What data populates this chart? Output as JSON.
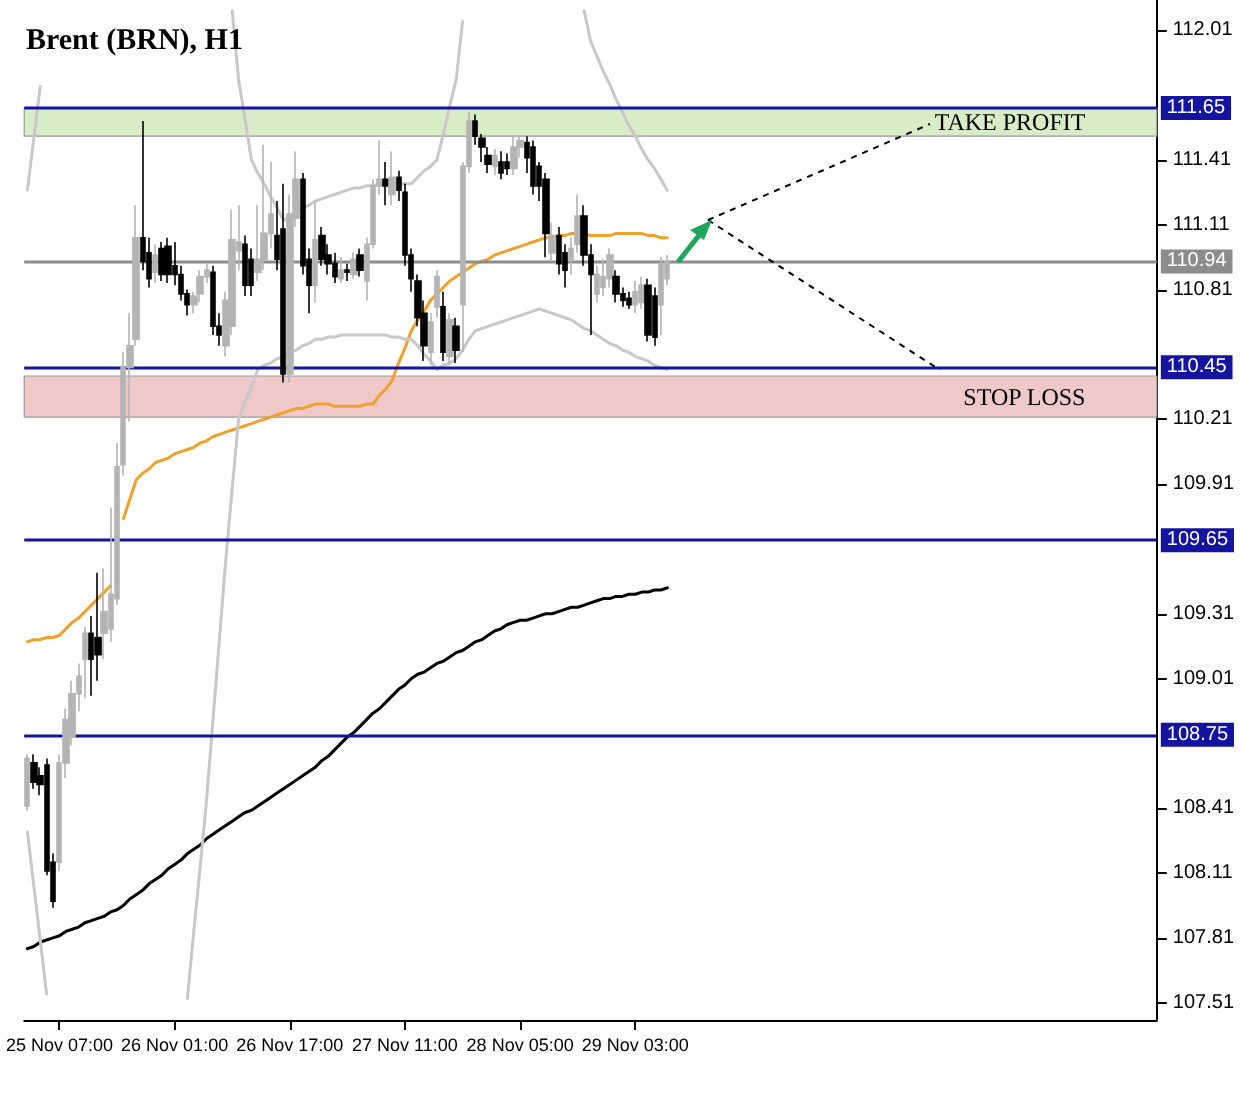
{
  "chart_data": {
    "type": "candlestick",
    "title": "Brent (BRN), H1",
    "categories": [
      null,
      null,
      null,
      null,
      null,
      "25 Nov 07:00",
      null,
      null,
      null,
      null,
      null,
      null,
      null,
      null,
      null,
      null,
      null,
      null,
      null,
      null,
      null,
      null,
      null,
      "26 Nov 01:00",
      null,
      null,
      null,
      null,
      null,
      null,
      null,
      null,
      null,
      null,
      null,
      null,
      null,
      null,
      null,
      null,
      null,
      "26 Nov 17:00",
      null,
      null,
      null,
      null,
      null,
      null,
      null,
      null,
      null,
      null,
      null,
      null,
      null,
      null,
      null,
      null,
      null,
      "27 Nov 11:00",
      null,
      null,
      null,
      null,
      null,
      null,
      null,
      null,
      null,
      null,
      null,
      null,
      null,
      null,
      null,
      null,
      null,
      "28 Nov 05:00",
      null,
      null,
      null,
      null,
      null,
      null,
      null,
      null,
      null,
      null,
      null,
      null,
      null,
      null,
      null,
      null,
      null,
      "29 Nov 03:00",
      null,
      null,
      null,
      null,
      null,
      null,
      null,
      null,
      null,
      null,
      null,
      null,
      null,
      null,
      null,
      null,
      null,
      null,
      null,
      null,
      null,
      null,
      null,
      null,
      null,
      null,
      null,
      null,
      null,
      null,
      null,
      null,
      null,
      null,
      null,
      null,
      null,
      null,
      null,
      null,
      null,
      null,
      null,
      null,
      null,
      null,
      null,
      null,
      null,
      null,
      null,
      null,
      null,
      null,
      null,
      null,
      null,
      null,
      null,
      null,
      null,
      null,
      null,
      null,
      null,
      null,
      null,
      null,
      null,
      null,
      null,
      null,
      null,
      null,
      null,
      null,
      null,
      null,
      null,
      null,
      null
    ],
    "ohlc": [
      [
        108.42,
        108.66,
        108.4,
        108.64
      ],
      [
        108.62,
        108.66,
        108.5,
        108.53
      ],
      [
        108.56,
        108.6,
        108.47,
        108.52
      ],
      [
        108.61,
        108.64,
        108.1,
        108.12
      ],
      [
        108.16,
        108.2,
        107.95,
        107.98
      ],
      [
        108.16,
        108.66,
        108.12,
        108.62
      ],
      [
        108.62,
        108.87,
        108.55,
        108.82
      ],
      [
        108.74,
        109.0,
        108.7,
        108.94
      ],
      [
        108.94,
        109.08,
        108.86,
        109.02
      ],
      [
        109.1,
        109.25,
        108.92,
        109.22
      ],
      [
        109.22,
        109.3,
        108.93,
        109.1
      ],
      [
        109.2,
        109.5,
        109.0,
        109.12
      ],
      [
        109.22,
        109.52,
        109.1,
        109.32
      ],
      [
        109.24,
        109.8,
        109.18,
        109.4
      ],
      [
        109.38,
        110.1,
        109.35,
        109.99
      ],
      [
        110.0,
        110.52,
        109.95,
        110.45
      ],
      [
        110.45,
        110.7,
        110.2,
        110.55
      ],
      [
        110.58,
        111.2,
        110.55,
        111.05
      ],
      [
        111.05,
        111.59,
        110.9,
        110.94
      ],
      [
        110.98,
        111.05,
        110.82,
        110.86
      ],
      [
        110.89,
        111.02,
        110.84,
        110.97
      ],
      [
        111.0,
        111.03,
        110.85,
        110.88
      ],
      [
        111.01,
        111.05,
        110.84,
        110.88
      ],
      [
        110.92,
        111.03,
        110.83,
        110.88
      ],
      [
        110.88,
        110.92,
        110.76,
        110.79
      ],
      [
        110.79,
        110.81,
        110.69,
        110.74
      ],
      [
        110.74,
        110.8,
        110.7,
        110.78
      ],
      [
        110.79,
        110.9,
        110.75,
        110.87
      ],
      [
        110.87,
        110.93,
        110.84,
        110.9
      ],
      [
        110.89,
        110.92,
        110.6,
        110.64
      ],
      [
        110.64,
        110.7,
        110.55,
        110.6
      ],
      [
        110.55,
        110.8,
        110.5,
        110.76
      ],
      [
        110.64,
        111.18,
        110.6,
        111.04
      ],
      [
        110.99,
        111.2,
        110.9,
        111.03
      ],
      [
        111.02,
        111.06,
        110.78,
        110.83
      ],
      [
        110.95,
        111.0,
        110.78,
        110.83
      ],
      [
        110.89,
        111.2,
        110.85,
        110.95
      ],
      [
        110.95,
        111.48,
        110.9,
        111.07
      ],
      [
        111.07,
        111.4,
        111.0,
        111.16
      ],
      [
        111.06,
        111.22,
        110.9,
        110.95
      ],
      [
        111.09,
        111.3,
        110.38,
        110.42
      ],
      [
        110.42,
        111.25,
        110.38,
        111.16
      ],
      [
        111.14,
        111.45,
        111.1,
        111.32
      ],
      [
        111.32,
        111.35,
        110.88,
        110.92
      ],
      [
        110.95,
        111.0,
        110.7,
        110.83
      ],
      [
        110.83,
        111.22,
        110.75,
        111.04
      ],
      [
        111.06,
        111.1,
        110.92,
        110.95
      ],
      [
        110.97,
        111.02,
        110.88,
        110.93
      ],
      [
        110.93,
        110.98,
        110.84,
        110.87
      ],
      [
        110.86,
        110.96,
        110.84,
        110.9
      ],
      [
        110.9,
        110.93,
        110.85,
        110.89
      ],
      [
        110.88,
        110.98,
        110.86,
        110.95
      ],
      [
        110.97,
        111.0,
        110.87,
        110.9
      ],
      [
        110.85,
        111.05,
        110.76,
        111.02
      ],
      [
        111.02,
        111.32,
        111.0,
        111.29
      ],
      [
        111.29,
        111.5,
        111.25,
        111.32
      ],
      [
        111.32,
        111.4,
        111.2,
        111.29
      ],
      [
        111.25,
        111.45,
        111.2,
        111.33
      ],
      [
        111.33,
        111.36,
        111.22,
        111.27
      ],
      [
        111.26,
        111.3,
        110.92,
        110.97
      ],
      [
        110.97,
        111.0,
        110.8,
        110.86
      ],
      [
        110.85,
        110.88,
        110.64,
        110.68
      ],
      [
        110.7,
        110.76,
        110.48,
        110.55
      ],
      [
        110.52,
        110.7,
        110.46,
        110.66
      ],
      [
        110.73,
        110.9,
        110.68,
        110.87
      ],
      [
        110.73,
        110.8,
        110.48,
        110.52
      ],
      [
        110.5,
        110.7,
        110.46,
        110.67
      ],
      [
        110.64,
        110.68,
        110.47,
        110.53
      ],
      [
        110.74,
        111.4,
        110.52,
        111.38
      ],
      [
        111.38,
        111.63,
        111.35,
        111.59
      ],
      [
        111.59,
        111.62,
        111.48,
        111.52
      ],
      [
        111.51,
        111.53,
        111.4,
        111.47
      ],
      [
        111.43,
        111.47,
        111.35,
        111.39
      ],
      [
        111.38,
        111.46,
        111.34,
        111.43
      ],
      [
        111.4,
        111.45,
        111.32,
        111.35
      ],
      [
        111.4,
        111.44,
        111.34,
        111.37
      ],
      [
        111.37,
        111.52,
        111.34,
        111.47
      ],
      [
        111.47,
        111.52,
        111.42,
        111.5
      ],
      [
        111.49,
        111.52,
        111.35,
        111.42
      ],
      [
        111.47,
        111.5,
        111.25,
        111.29
      ],
      [
        111.38,
        111.4,
        111.22,
        111.29
      ],
      [
        111.32,
        111.35,
        110.96,
        111.07
      ],
      [
        110.98,
        111.12,
        110.94,
        111.06
      ],
      [
        111.06,
        111.1,
        110.88,
        110.93
      ],
      [
        110.98,
        111.02,
        110.82,
        110.9
      ],
      [
        110.95,
        111.05,
        110.88,
        111.0
      ],
      [
        111.02,
        111.25,
        110.98,
        111.15
      ],
      [
        111.15,
        111.2,
        110.92,
        110.97
      ],
      [
        110.97,
        111.02,
        110.6,
        110.88
      ],
      [
        110.79,
        110.92,
        110.75,
        110.88
      ],
      [
        110.82,
        110.95,
        110.78,
        110.87
      ],
      [
        110.86,
        111.0,
        110.82,
        110.97
      ],
      [
        110.87,
        110.9,
        110.75,
        110.79
      ],
      [
        110.79,
        110.82,
        110.73,
        110.76
      ],
      [
        110.77,
        110.8,
        110.72,
        110.74
      ],
      [
        110.74,
        110.85,
        110.7,
        110.8
      ],
      [
        110.75,
        110.87,
        110.72,
        110.83
      ],
      [
        110.83,
        110.86,
        110.57,
        110.6
      ],
      [
        110.78,
        110.82,
        110.55,
        110.59
      ],
      [
        110.74,
        110.96,
        110.6,
        110.93
      ],
      [
        110.86,
        110.97,
        110.83,
        110.94
      ],
      null,
      null,
      null,
      null,
      null,
      null,
      null,
      null,
      null,
      null,
      null,
      null,
      null,
      null,
      null,
      null,
      null,
      null,
      null,
      null,
      null,
      null,
      null,
      null,
      null,
      null,
      null,
      null,
      null,
      null,
      null,
      null,
      null,
      null,
      null,
      null,
      null,
      null,
      null,
      null,
      null,
      null,
      null,
      null,
      null,
      null,
      null,
      null,
      null,
      null,
      null,
      null,
      null,
      null,
      null,
      null,
      null,
      null,
      null,
      null,
      null,
      null,
      null,
      null,
      null,
      null,
      null,
      null,
      null,
      null,
      null,
      null,
      null,
      null,
      null,
      null
    ],
    "colors": [
      "#b4b4b4",
      "#000000",
      "#000000",
      "#000000",
      "#000000",
      "#b4b4b4",
      "#b4b4b4",
      "#b4b4b4",
      "#b4b4b4",
      "#b4b4b4",
      "#000000",
      "#000000",
      "#b4b4b4",
      "#b4b4b4",
      "#b4b4b4",
      "#b4b4b4",
      "#b4b4b4",
      "#b4b4b4",
      "#000000",
      "#000000",
      "#b4b4b4",
      "#000000",
      "#000000",
      "#000000",
      "#000000",
      "#000000",
      "#b4b4b4",
      "#b4b4b4",
      "#b4b4b4",
      "#000000",
      "#000000",
      "#b4b4b4",
      "#b4b4b4",
      "#b4b4b4",
      "#000000",
      "#000000",
      "#b4b4b4",
      "#b4b4b4",
      "#b4b4b4",
      "#000000",
      "#000000",
      "#b4b4b4",
      "#b4b4b4",
      "#000000",
      "#000000",
      "#b4b4b4",
      "#000000",
      "#000000",
      "#000000",
      "#b4b4b4",
      "#000000",
      "#b4b4b4",
      "#000000",
      "#b4b4b4",
      "#b4b4b4",
      "#b4b4b4",
      "#000000",
      "#b4b4b4",
      "#000000",
      "#000000",
      "#000000",
      "#000000",
      "#000000",
      "#b4b4b4",
      "#b4b4b4",
      "#000000",
      "#b4b4b4",
      "#000000",
      "#b4b4b4",
      "#b4b4b4",
      "#000000",
      "#000000",
      "#000000",
      "#b4b4b4",
      "#000000",
      "#000000",
      "#b4b4b4",
      "#b4b4b4",
      "#000000",
      "#000000",
      "#000000",
      "#000000",
      "#b4b4b4",
      "#000000",
      "#000000",
      "#b4b4b4",
      "#b4b4b4",
      "#000000",
      "#000000",
      "#b4b4b4",
      "#b4b4b4",
      "#b4b4b4",
      "#000000",
      "#000000",
      "#000000",
      "#b4b4b4",
      "#b4b4b4",
      "#000000",
      "#000000",
      "#b4b4b4",
      "#b4b4b4",
      null,
      null,
      null,
      null,
      null,
      null,
      null,
      null,
      null,
      null,
      null,
      null,
      null,
      null,
      null,
      null,
      null,
      null,
      null,
      null,
      null,
      null,
      null,
      null,
      null,
      null,
      null,
      null,
      null,
      null,
      null,
      null,
      null,
      null,
      null,
      null,
      null,
      null,
      null,
      null,
      null,
      null,
      null,
      null,
      null,
      null,
      null,
      null,
      null,
      null,
      null,
      null,
      null,
      null,
      null,
      null,
      null,
      null,
      null,
      null,
      null,
      null,
      null,
      null,
      null,
      null,
      null,
      null,
      null,
      null,
      null,
      null,
      null,
      null,
      null,
      null
    ],
    "series": [
      {
        "type": "line",
        "color": "#f0a02c",
        "values": [
          109.18,
          109.19,
          109.19,
          109.2,
          109.2,
          109.21,
          109.24,
          109.27,
          109.29,
          109.32,
          109.35,
          109.38,
          109.41,
          109.44,
          null,
          109.75,
          109.84,
          109.93,
          109.96,
          109.98,
          110.01,
          110.02,
          110.03,
          110.05,
          110.06,
          110.07,
          110.08,
          110.1,
          110.11,
          110.13,
          110.14,
          110.15,
          110.16,
          110.17,
          110.18,
          110.19,
          110.2,
          110.21,
          110.22,
          110.23,
          110.24,
          110.25,
          110.26,
          110.26,
          110.27,
          110.28,
          110.28,
          110.28,
          110.27,
          110.27,
          110.27,
          110.27,
          110.27,
          110.28,
          110.28,
          110.32,
          110.35,
          110.39,
          110.47,
          110.54,
          110.62,
          110.67,
          110.71,
          110.76,
          110.79,
          110.82,
          110.85,
          110.87,
          110.89,
          110.91,
          110.93,
          110.94,
          110.95,
          110.97,
          110.98,
          110.99,
          111.0,
          111.01,
          111.02,
          111.03,
          111.04,
          111.05,
          111.05,
          111.06,
          111.06,
          111.07,
          111.07,
          111.07,
          111.06,
          111.06,
          111.06,
          111.06,
          111.07,
          111.07,
          111.07,
          111.07,
          111.07,
          111.06,
          111.06,
          111.05,
          111.05,
          null,
          null,
          null,
          null,
          null,
          null,
          null,
          null,
          null,
          null,
          null,
          null,
          null,
          null,
          null,
          null,
          null,
          null,
          null,
          null,
          null,
          null,
          null,
          null,
          null,
          null,
          null,
          null,
          null,
          null,
          null,
          null,
          null,
          null,
          null,
          null,
          null,
          null,
          null,
          null,
          null,
          null,
          null,
          null,
          null,
          null,
          null,
          null,
          null,
          null,
          null,
          null,
          null,
          null,
          null,
          null,
          null,
          null,
          null,
          null,
          null,
          null,
          null,
          null,
          null,
          null,
          null,
          null,
          null,
          null,
          null,
          null,
          null,
          null,
          null,
          null
        ]
      },
      {
        "type": "line",
        "color": "#000000",
        "values": [
          107.76,
          107.77,
          107.79,
          107.8,
          107.81,
          107.82,
          107.84,
          107.85,
          107.86,
          107.88,
          107.89,
          107.9,
          107.91,
          107.93,
          107.94,
          107.96,
          107.99,
          108.01,
          108.03,
          108.06,
          108.08,
          108.1,
          108.13,
          108.15,
          108.17,
          108.2,
          108.22,
          108.24,
          108.27,
          108.29,
          108.31,
          108.33,
          108.35,
          108.37,
          108.39,
          108.4,
          108.42,
          108.44,
          108.46,
          108.48,
          108.5,
          108.52,
          108.54,
          108.56,
          108.58,
          108.6,
          108.63,
          108.65,
          108.68,
          108.71,
          108.74,
          108.76,
          108.79,
          108.82,
          108.85,
          108.87,
          108.9,
          108.93,
          108.96,
          108.98,
          109.01,
          109.03,
          109.04,
          109.06,
          109.08,
          109.09,
          109.11,
          109.13,
          109.14,
          109.16,
          109.18,
          109.19,
          109.21,
          109.23,
          109.24,
          109.26,
          109.27,
          109.28,
          109.28,
          109.29,
          109.3,
          109.31,
          109.31,
          109.32,
          109.33,
          109.34,
          109.34,
          109.35,
          109.36,
          109.37,
          109.38,
          109.38,
          109.39,
          109.39,
          109.4,
          109.4,
          109.41,
          109.41,
          109.42,
          109.42,
          109.43,
          null,
          null,
          null,
          null,
          null,
          null,
          null,
          null,
          null,
          null,
          null,
          null,
          null,
          null,
          null,
          null,
          null,
          null,
          null,
          null,
          null,
          null,
          null,
          null,
          null,
          null,
          null,
          null,
          null,
          null,
          null,
          null,
          null,
          null,
          null,
          null,
          null,
          null,
          null,
          null,
          null,
          null,
          null,
          null,
          null,
          null,
          null,
          null,
          null,
          null,
          null,
          null,
          null,
          null,
          null,
          null,
          null,
          null,
          null,
          null,
          null,
          null,
          null,
          null,
          null,
          null,
          null,
          null,
          null,
          null,
          null,
          null,
          null,
          null,
          null,
          null
        ]
      },
      {
        "type": "line",
        "color": "#c8c8c8",
        "values": [
          111.27,
          111.51,
          111.75,
          null,
          null,
          null,
          null,
          null,
          null,
          null,
          null,
          null,
          null,
          null,
          null,
          null,
          null,
          null,
          null,
          null,
          null,
          null,
          null,
          null,
          null,
          null,
          null,
          null,
          null,
          null,
          null,
          null,
          112.1,
          111.78,
          111.6,
          111.41,
          111.35,
          111.3,
          111.24,
          111.19,
          111.13,
          111.15,
          111.17,
          111.19,
          111.2,
          111.22,
          111.23,
          111.24,
          111.25,
          111.26,
          111.27,
          111.28,
          111.28,
          111.29,
          111.29,
          111.3,
          111.3,
          111.3,
          111.3,
          111.3,
          111.3,
          111.33,
          111.36,
          111.38,
          111.41,
          111.53,
          111.66,
          111.78,
          112.05,
          null,
          null,
          null,
          null,
          null,
          null,
          null,
          null,
          null,
          null,
          null,
          null,
          null,
          null,
          null,
          null,
          null,
          null,
          112.1,
          111.96,
          111.89,
          111.82,
          111.76,
          111.69,
          111.63,
          111.57,
          111.52,
          111.46,
          111.41,
          111.37,
          111.32,
          111.27,
          null,
          null,
          null,
          null,
          null,
          null,
          null,
          null,
          null,
          null,
          null,
          null,
          null,
          null,
          null,
          null,
          null,
          null,
          null,
          null,
          null,
          null,
          null,
          null,
          null,
          null,
          null,
          null,
          null,
          null,
          null,
          null,
          null,
          null,
          null,
          null,
          null,
          null,
          null,
          null,
          null,
          null,
          null,
          null,
          null,
          null,
          null,
          null,
          null,
          null,
          null,
          null,
          null,
          null,
          null,
          null,
          null,
          null,
          null,
          null,
          null,
          null,
          null,
          null,
          null,
          null,
          null,
          null,
          null,
          null,
          null,
          null,
          null,
          null,
          null,
          null
        ]
      },
      {
        "type": "line",
        "color": "#c8c8c8",
        "values": [
          108.3,
          108.05,
          107.8,
          107.55,
          null,
          null,
          null,
          null,
          null,
          null,
          null,
          null,
          null,
          null,
          null,
          null,
          null,
          null,
          null,
          null,
          null,
          null,
          null,
          null,
          null,
          107.53,
          107.84,
          108.14,
          108.45,
          108.82,
          109.19,
          109.56,
          109.89,
          110.21,
          110.29,
          110.36,
          110.44,
          110.46,
          110.47,
          110.49,
          110.5,
          110.52,
          110.53,
          110.55,
          110.56,
          110.58,
          110.58,
          110.59,
          110.59,
          110.6,
          110.6,
          110.6,
          110.6,
          110.6,
          110.6,
          110.6,
          110.6,
          110.59,
          110.59,
          110.58,
          110.58,
          110.55,
          110.51,
          110.48,
          110.44,
          110.46,
          110.47,
          110.49,
          110.53,
          110.58,
          110.62,
          110.63,
          110.64,
          110.65,
          110.66,
          110.67,
          110.68,
          110.69,
          110.7,
          110.71,
          110.72,
          110.71,
          110.7,
          110.69,
          110.68,
          110.67,
          110.65,
          110.63,
          110.62,
          110.6,
          110.58,
          110.56,
          110.55,
          110.53,
          110.52,
          110.5,
          110.49,
          110.48,
          110.46,
          110.45,
          110.44,
          null,
          null,
          null,
          null,
          null,
          null,
          null,
          null,
          null,
          null,
          null,
          null,
          null,
          null,
          null,
          null,
          null,
          null,
          null,
          null,
          null,
          null,
          null,
          null,
          null,
          null,
          null,
          null,
          null,
          null,
          null,
          null,
          null,
          null,
          null,
          null,
          null,
          null,
          null,
          null,
          null,
          null,
          null,
          null,
          null,
          null,
          null,
          null,
          null,
          null,
          null,
          null,
          null,
          null,
          null,
          null,
          null,
          null,
          null,
          null,
          null,
          null,
          null,
          null,
          null,
          null,
          null,
          null,
          null,
          null,
          null,
          null,
          null,
          null,
          null,
          null
        ]
      }
    ],
    "ylim": [
      107.43,
      112.15
    ],
    "yticks": [
      107.51,
      107.81,
      108.11,
      108.41,
      109.01,
      109.31,
      109.91,
      110.21,
      110.81,
      111.11,
      111.41,
      112.01
    ],
    "ref_lines": [
      {
        "axis": "y",
        "value": 111.65,
        "label": "111.65",
        "color": "#1414a0"
      },
      {
        "axis": "y",
        "value": 110.94,
        "label": "110.94",
        "color": "#8c8c8c"
      },
      {
        "axis": "y",
        "value": 110.45,
        "label": "110.45",
        "color": "#1414a0"
      },
      {
        "axis": "y",
        "value": 109.65,
        "label": "109.65",
        "color": "#1414a0"
      },
      {
        "axis": "y",
        "value": 108.75,
        "label": "108.75",
        "color": "#1414a0"
      }
    ],
    "bands": [
      {
        "axis": "y",
        "from": 111.52,
        "to": 111.65,
        "label": "TAKE PROFIT",
        "color": "#d9ecc8"
      },
      {
        "axis": "y",
        "from": 110.22,
        "to": 110.41,
        "label": "STOP LOSS",
        "color": "#efc8c8"
      }
    ]
  }
}
